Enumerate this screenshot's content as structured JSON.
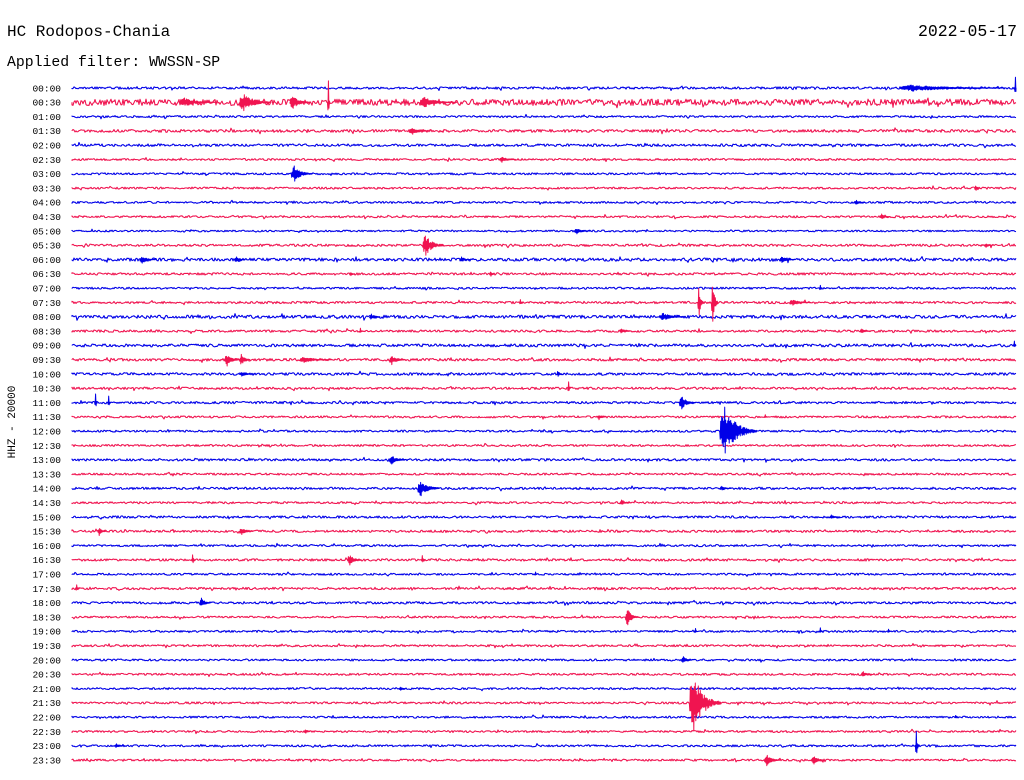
{
  "header": {
    "station": "HC Rodopos-Chania",
    "date": "2022-05-17",
    "filter": "Applied filter: WWSSN-SP"
  },
  "chart_data": {
    "type": "line",
    "ylabel": "HHZ - 20000",
    "grid": false,
    "colors": [
      "#0000e8",
      "#f01450"
    ],
    "rows": [
      {
        "label": "00:00",
        "noise": 0.08
      },
      {
        "label": "00:30",
        "noise": 0.22
      },
      {
        "label": "01:00",
        "noise": 0.07
      },
      {
        "label": "01:30",
        "noise": 0.1
      },
      {
        "label": "02:00",
        "noise": 0.09
      },
      {
        "label": "02:30",
        "noise": 0.07
      },
      {
        "label": "03:00",
        "noise": 0.07
      },
      {
        "label": "03:30",
        "noise": 0.07
      },
      {
        "label": "04:00",
        "noise": 0.07
      },
      {
        "label": "04:30",
        "noise": 0.07
      },
      {
        "label": "05:00",
        "noise": 0.06
      },
      {
        "label": "05:30",
        "noise": 0.08
      },
      {
        "label": "06:00",
        "noise": 0.11
      },
      {
        "label": "06:30",
        "noise": 0.08
      },
      {
        "label": "07:00",
        "noise": 0.07
      },
      {
        "label": "07:30",
        "noise": 0.08
      },
      {
        "label": "08:00",
        "noise": 0.11
      },
      {
        "label": "08:30",
        "noise": 0.08
      },
      {
        "label": "09:00",
        "noise": 0.1
      },
      {
        "label": "09:30",
        "noise": 0.09
      },
      {
        "label": "10:00",
        "noise": 0.09
      },
      {
        "label": "10:30",
        "noise": 0.08
      },
      {
        "label": "11:00",
        "noise": 0.08
      },
      {
        "label": "11:30",
        "noise": 0.07
      },
      {
        "label": "12:00",
        "noise": 0.07
      },
      {
        "label": "12:30",
        "noise": 0.07
      },
      {
        "label": "13:00",
        "noise": 0.08
      },
      {
        "label": "13:30",
        "noise": 0.07
      },
      {
        "label": "14:00",
        "noise": 0.08
      },
      {
        "label": "14:30",
        "noise": 0.07
      },
      {
        "label": "15:00",
        "noise": 0.08
      },
      {
        "label": "15:30",
        "noise": 0.08
      },
      {
        "label": "16:00",
        "noise": 0.07
      },
      {
        "label": "16:30",
        "noise": 0.08
      },
      {
        "label": "17:00",
        "noise": 0.07
      },
      {
        "label": "17:30",
        "noise": 0.08
      },
      {
        "label": "18:00",
        "noise": 0.08
      },
      {
        "label": "18:30",
        "noise": 0.07
      },
      {
        "label": "19:00",
        "noise": 0.07
      },
      {
        "label": "19:30",
        "noise": 0.07
      },
      {
        "label": "20:00",
        "noise": 0.07
      },
      {
        "label": "20:30",
        "noise": 0.07
      },
      {
        "label": "21:00",
        "noise": 0.07
      },
      {
        "label": "21:30",
        "noise": 0.07
      },
      {
        "label": "22:00",
        "noise": 0.07
      },
      {
        "label": "22:30",
        "noise": 0.07
      },
      {
        "label": "23:00",
        "noise": 0.07
      },
      {
        "label": "23:30",
        "noise": 0.07
      }
    ],
    "events": [
      {
        "time": "00:26:20",
        "amplitude": 0.22,
        "duration_s": 200
      },
      {
        "time": "00:29:58",
        "amplitude": 0.75,
        "duration_s": 4
      },
      {
        "time": "00:33:26",
        "amplitude": 0.3,
        "duration_s": 70
      },
      {
        "time": "00:35:20",
        "amplitude": 0.6,
        "duration_s": 60
      },
      {
        "time": "00:36:56",
        "amplitude": 0.45,
        "duration_s": 40
      },
      {
        "time": "00:38:08",
        "amplitude": 1.5,
        "duration_s": 4
      },
      {
        "time": "00:41:04",
        "amplitude": 0.35,
        "duration_s": 70
      },
      {
        "time": "01:40:44",
        "amplitude": 0.25,
        "duration_s": 40
      },
      {
        "time": "02:43:36",
        "amplitude": 0.2,
        "duration_s": 30
      },
      {
        "time": "03:06:59",
        "amplitude": 0.55,
        "duration_s": 40
      },
      {
        "time": "03:58:42",
        "amplitude": 0.2,
        "duration_s": 10
      },
      {
        "time": "04:24:53",
        "amplitude": 0.15,
        "duration_s": 20
      },
      {
        "time": "04:55:41",
        "amplitude": 0.2,
        "duration_s": 20
      },
      {
        "time": "05:15:59",
        "amplitude": 0.2,
        "duration_s": 30
      },
      {
        "time": "05:41:09",
        "amplitude": 0.75,
        "duration_s": 40
      },
      {
        "time": "05:59:01",
        "amplitude": 0.15,
        "duration_s": 15
      },
      {
        "time": "06:02:10",
        "amplitude": 0.25,
        "duration_s": 30
      },
      {
        "time": "06:05:11",
        "amplitude": 0.2,
        "duration_s": 20
      },
      {
        "time": "06:12:20",
        "amplitude": 0.2,
        "duration_s": 20
      },
      {
        "time": "06:22:30",
        "amplitude": 0.2,
        "duration_s": 30
      },
      {
        "time": "06:38:50",
        "amplitude": 0.15,
        "duration_s": 10
      },
      {
        "time": "06:43:17",
        "amplitude": 0.2,
        "duration_s": 10
      },
      {
        "time": "07:23:46",
        "amplitude": 0.2,
        "duration_s": 5
      },
      {
        "time": "07:44:14",
        "amplitude": 0.2,
        "duration_s": 5
      },
      {
        "time": "07:49:54",
        "amplitude": 1.1,
        "duration_s": 10
      },
      {
        "time": "07:50:20",
        "amplitude": 1.5,
        "duration_s": 12
      },
      {
        "time": "07:52:49",
        "amplitude": 0.2,
        "duration_s": 40
      },
      {
        "time": "08:09:28",
        "amplitude": 0.2,
        "duration_s": 20
      },
      {
        "time": "08:18:41",
        "amplitude": 0.25,
        "duration_s": 50
      },
      {
        "time": "08:39:09",
        "amplitude": 0.2,
        "duration_s": 5
      },
      {
        "time": "08:47:25",
        "amplitude": 0.15,
        "duration_s": 20
      },
      {
        "time": "08:55:03",
        "amplitude": 0.15,
        "duration_s": 20
      },
      {
        "time": "09:29:56",
        "amplitude": 0.3,
        "duration_s": 4
      },
      {
        "time": "09:34:52",
        "amplitude": 0.45,
        "duration_s": 30
      },
      {
        "time": "09:35:20",
        "amplitude": 0.4,
        "duration_s": 20
      },
      {
        "time": "09:37:15",
        "amplitude": 0.2,
        "duration_s": 60
      },
      {
        "time": "09:40:06",
        "amplitude": 0.35,
        "duration_s": 30
      },
      {
        "time": "10:05:20",
        "amplitude": 0.15,
        "duration_s": 30
      },
      {
        "time": "10:15:25",
        "amplitude": 0.2,
        "duration_s": 10
      },
      {
        "time": "10:45:46",
        "amplitude": 0.45,
        "duration_s": 4
      },
      {
        "time": "11:00:44",
        "amplitude": 0.6,
        "duration_s": 4
      },
      {
        "time": "11:01:09",
        "amplitude": 0.45,
        "duration_s": 4
      },
      {
        "time": "11:19:19",
        "amplitude": 0.45,
        "duration_s": 30
      },
      {
        "time": "11:46:43",
        "amplitude": 0.2,
        "duration_s": 15
      },
      {
        "time": "11:52:01",
        "amplitude": 0.15,
        "duration_s": 5
      },
      {
        "time": "12:20:36",
        "amplitude": 1.7,
        "duration_s": 70
      },
      {
        "time": "13:10:06",
        "amplitude": 0.3,
        "duration_s": 30
      },
      {
        "time": "14:11:00",
        "amplitude": 0.55,
        "duration_s": 40
      },
      {
        "time": "14:20:36",
        "amplitude": 0.15,
        "duration_s": 20
      },
      {
        "time": "14:47:25",
        "amplitude": 0.2,
        "duration_s": 20
      },
      {
        "time": "15:24:05",
        "amplitude": 0.15,
        "duration_s": 20
      },
      {
        "time": "15:30:50",
        "amplitude": 0.3,
        "duration_s": 15
      },
      {
        "time": "15:35:20",
        "amplitude": 0.25,
        "duration_s": 25
      },
      {
        "time": "16:33:49",
        "amplitude": 0.35,
        "duration_s": 6
      },
      {
        "time": "16:38:46",
        "amplitude": 0.4,
        "duration_s": 25
      },
      {
        "time": "16:41:07",
        "amplitude": 0.3,
        "duration_s": 6
      },
      {
        "time": "17:14:43",
        "amplitude": 0.15,
        "duration_s": 4
      },
      {
        "time": "17:30:08",
        "amplitude": 0.25,
        "duration_s": 6
      },
      {
        "time": "18:04:04",
        "amplitude": 0.35,
        "duration_s": 20
      },
      {
        "time": "18:47:36",
        "amplitude": 0.6,
        "duration_s": 25
      },
      {
        "time": "19:19:48",
        "amplitude": 0.2,
        "duration_s": 3
      },
      {
        "time": "19:23:46",
        "amplitude": 0.25,
        "duration_s": 3
      },
      {
        "time": "19:25:56",
        "amplitude": 0.15,
        "duration_s": 3
      },
      {
        "time": "20:19:23",
        "amplitude": 0.25,
        "duration_s": 20
      },
      {
        "time": "20:55:06",
        "amplitude": 0.2,
        "duration_s": 20
      },
      {
        "time": "21:10:25",
        "amplitude": 0.15,
        "duration_s": 10
      },
      {
        "time": "21:49:38",
        "amplitude": 2.0,
        "duration_s": 60
      },
      {
        "time": "22:28:04",
        "amplitude": 0.12,
        "duration_s": 5
      },
      {
        "time": "22:37:24",
        "amplitude": 0.15,
        "duration_s": 10
      },
      {
        "time": "23:01:22",
        "amplitude": 0.15,
        "duration_s": 20
      },
      {
        "time": "23:26:49",
        "amplitude": 1.0,
        "duration_s": 6
      },
      {
        "time": "23:52:01",
        "amplitude": 0.4,
        "duration_s": 30
      },
      {
        "time": "23:53:31",
        "amplitude": 0.3,
        "duration_s": 25
      }
    ]
  }
}
